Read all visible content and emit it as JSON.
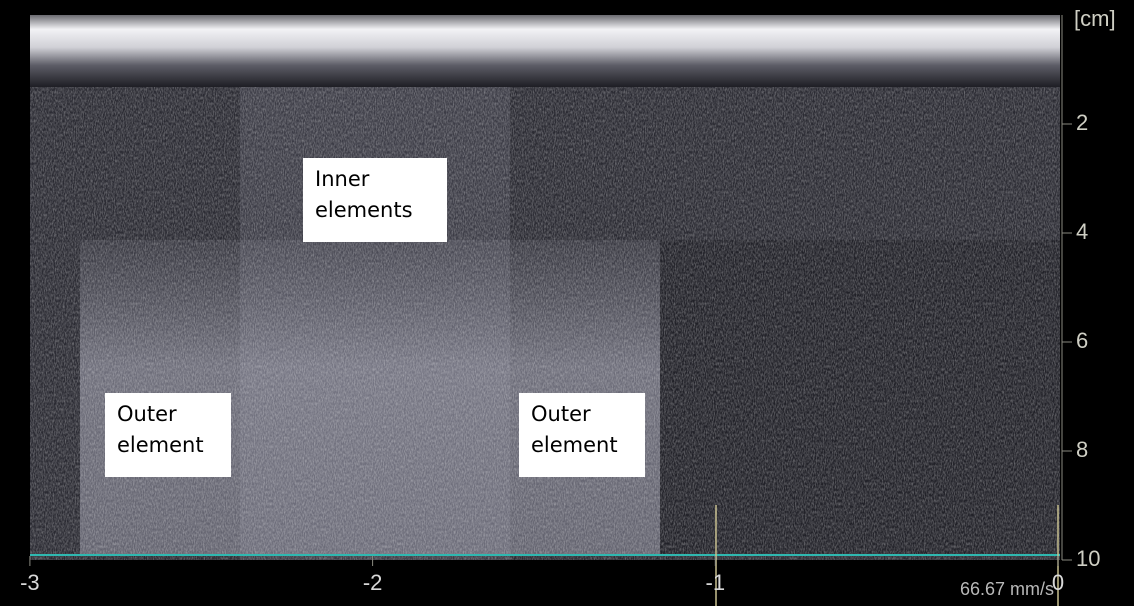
{
  "depth_axis": {
    "unit": "[cm]",
    "ticks": [
      2,
      4,
      6,
      8,
      10
    ]
  },
  "time_axis": {
    "ticks": [
      -3,
      -2,
      -1,
      0
    ]
  },
  "sweep_speed": "66.67 mm/s",
  "annotations": [
    "Inner elements",
    "Outer element",
    "Outer element"
  ]
}
